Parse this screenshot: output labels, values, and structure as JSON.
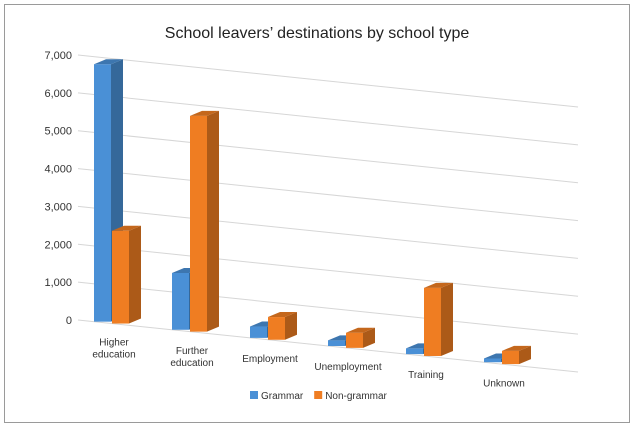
{
  "chart_data": {
    "type": "bar",
    "title": "School leavers’ destinations by school type",
    "categories": [
      [
        "Higher",
        "education"
      ],
      [
        "Further",
        "education"
      ],
      [
        "Employment"
      ],
      [
        "Unemployment"
      ],
      [
        "Training"
      ],
      [
        "Unknown"
      ]
    ],
    "series": [
      {
        "name": "Grammar",
        "color": "#4a90d6",
        "values": [
          6800,
          1500,
          300,
          150,
          150,
          100
        ]
      },
      {
        "name": "Non-grammar",
        "color": "#ef7d22",
        "values": [
          2450,
          5700,
          600,
          400,
          1800,
          350
        ]
      }
    ],
    "ylim": [
      0,
      7000
    ],
    "yticks": [
      "0",
      "1,000",
      "2,000",
      "3,000",
      "4,000",
      "5,000",
      "6,000",
      "7,000"
    ],
    "grid": true,
    "legend_position": "bottom"
  }
}
